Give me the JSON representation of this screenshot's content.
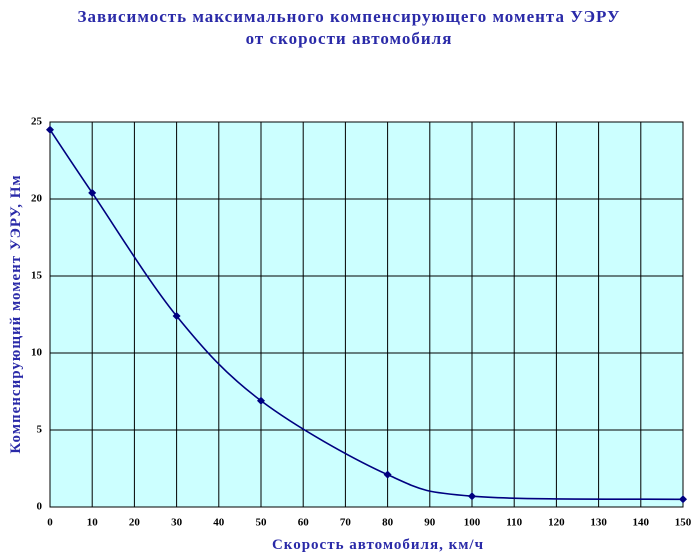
{
  "chart_data": {
    "type": "line",
    "title": "Зависимость максимального компенсирующего момента УЭРУ от скорости автомобиля",
    "x_label": "Скорость автомобиля, км/ч",
    "y_label": "Компенсирующий момент УЭРУ, Нм",
    "x": [
      0,
      10,
      30,
      50,
      80,
      100,
      150
    ],
    "series": [
      {
        "color": "#000080",
        "values": [
          24.5,
          20.4,
          12.4,
          6.9,
          2.1,
          0.7,
          0.5
        ]
      }
    ],
    "xlim": [
      0,
      150
    ],
    "xticks": [
      0,
      10,
      20,
      30,
      40,
      50,
      60,
      70,
      80,
      90,
      100,
      110,
      120,
      130,
      140,
      150
    ],
    "ylim": [
      0,
      25
    ],
    "yticks": [
      0,
      5,
      10,
      15,
      20,
      25
    ],
    "grid": true
  }
}
